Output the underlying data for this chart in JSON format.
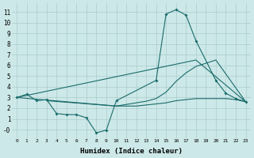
{
  "background_color": "#cde8e8",
  "grid_color": "#aacccc",
  "line_color": "#1a6b6b",
  "xlabel": "Humidex (Indice chaleur)",
  "xlim": [
    -0.5,
    23.5
  ],
  "ylim": [
    -0.8,
    11.8
  ],
  "xticks": [
    0,
    1,
    2,
    3,
    4,
    5,
    6,
    7,
    8,
    9,
    10,
    11,
    12,
    13,
    14,
    15,
    16,
    17,
    18,
    19,
    20,
    21,
    22,
    23
  ],
  "yticks": [
    0,
    1,
    2,
    3,
    4,
    5,
    6,
    7,
    8,
    9,
    10,
    11
  ],
  "ytick_labels": [
    "-0",
    "1",
    "2",
    "3",
    "4",
    "5",
    "6",
    "7",
    "8",
    "9",
    "10",
    "11"
  ],
  "line1_x": [
    0,
    1,
    2,
    3,
    4,
    5,
    6,
    7,
    8,
    9,
    10,
    14,
    15,
    16,
    17,
    18,
    20,
    21,
    22,
    23
  ],
  "line1_y": [
    3.0,
    3.3,
    2.7,
    2.8,
    1.5,
    1.4,
    1.4,
    1.1,
    -0.3,
    -0.05,
    2.7,
    4.6,
    10.8,
    11.2,
    10.7,
    8.3,
    4.6,
    3.4,
    2.9,
    2.6
  ],
  "line2_x": [
    0,
    18,
    23
  ],
  "line2_y": [
    3.0,
    6.5,
    2.6
  ],
  "line3_x": [
    0,
    10,
    11,
    12,
    13,
    14,
    15,
    16,
    17,
    18,
    19,
    20,
    23
  ],
  "line3_y": [
    3.0,
    2.2,
    2.35,
    2.5,
    2.65,
    2.9,
    3.5,
    4.5,
    5.3,
    5.9,
    6.2,
    6.5,
    2.6
  ],
  "line4_x": [
    3,
    10,
    11,
    12,
    13,
    14,
    15,
    16,
    17,
    18,
    19,
    20,
    21,
    22,
    23
  ],
  "line4_y": [
    2.7,
    2.2,
    2.2,
    2.2,
    2.3,
    2.4,
    2.5,
    2.7,
    2.8,
    2.9,
    2.9,
    2.9,
    2.9,
    2.8,
    2.6
  ]
}
